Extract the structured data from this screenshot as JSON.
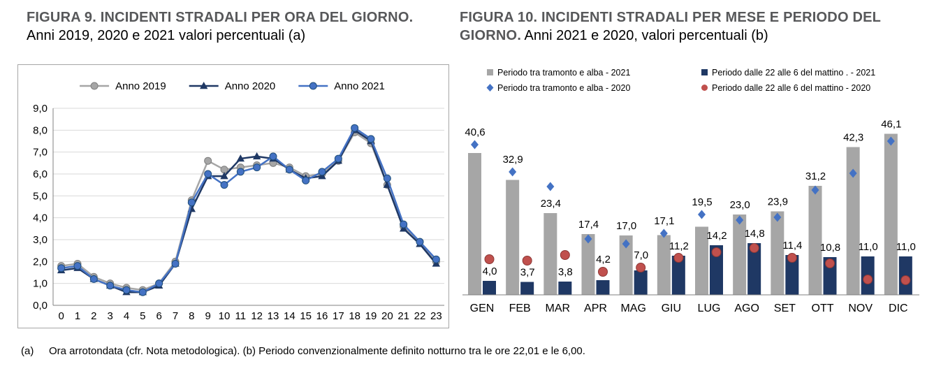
{
  "page": {
    "fig9": {
      "title": "FIGURA 9. INCIDENTI STRADALI PER ORA DEL GIORNO.",
      "subtitle": "Anni 2019, 2020 e 2021 valori percentuali (a)"
    },
    "fig10": {
      "title": "FIGURA 10. INCIDENTI STRADALI PER MESE E PERIODO DEL GIORNO.",
      "subtitle": "Anni 2021 e 2020, valori percentuali (b)"
    },
    "footnote": {
      "label": "(a)",
      "text": "Ora arrotondata (cfr. Nota metodologica). (b) Periodo convenzionalmente definito notturno tra le ore 22,01 e le 6,00."
    }
  },
  "chart_data": [
    {
      "type": "line",
      "title": "FIGURA 9. INCIDENTI STRADALI PER ORA DEL GIORNO. Anni 2019, 2020 e 2021 valori percentuali (a)",
      "xlabel": "",
      "ylabel": "",
      "x": [
        0,
        1,
        2,
        3,
        4,
        5,
        6,
        7,
        8,
        9,
        10,
        11,
        12,
        13,
        14,
        15,
        16,
        17,
        18,
        19,
        20,
        21,
        22,
        23
      ],
      "ylim": [
        0,
        9
      ],
      "ytick_step": 1,
      "ytick_labels": [
        "0,0",
        "1,0",
        "2,0",
        "3,0",
        "4,0",
        "5,0",
        "6,0",
        "7,0",
        "8,0",
        "9,0"
      ],
      "grid": true,
      "legend_position": "top",
      "series": [
        {
          "name": "Anno 2019",
          "color": "#a6a6a6",
          "marker": "circle",
          "marker_stroke": "#7f7f7f",
          "values": [
            1.8,
            1.9,
            1.3,
            1.0,
            0.8,
            0.7,
            1.0,
            2.0,
            4.8,
            6.6,
            6.2,
            6.3,
            6.4,
            6.5,
            6.3,
            5.9,
            6.0,
            6.6,
            7.9,
            7.4,
            5.5,
            3.6,
            2.9,
            2.0
          ]
        },
        {
          "name": "Anno 2020",
          "color": "#1f3864",
          "marker": "triangle",
          "marker_stroke": "#1f3864",
          "values": [
            1.6,
            1.7,
            1.2,
            0.9,
            0.6,
            0.6,
            0.9,
            1.9,
            4.4,
            5.9,
            5.9,
            6.7,
            6.8,
            6.7,
            6.2,
            5.8,
            5.9,
            6.6,
            8.0,
            7.5,
            5.5,
            3.5,
            2.8,
            1.9
          ]
        },
        {
          "name": "Anno 2021",
          "color": "#4472c4",
          "marker": "circle",
          "marker_stroke": "#1f4e79",
          "values": [
            1.7,
            1.8,
            1.2,
            0.9,
            0.7,
            0.6,
            1.0,
            1.9,
            4.7,
            6.0,
            5.5,
            6.1,
            6.3,
            6.8,
            6.2,
            5.7,
            6.1,
            6.7,
            8.1,
            7.6,
            5.8,
            3.7,
            2.9,
            2.1
          ]
        }
      ]
    },
    {
      "type": "bar",
      "title": "FIGURA 10. INCIDENTI STRADALI PER MESE E PERIODO DEL GIORNO. Anni 2021 e 2020, valori percentuali (b)",
      "xlabel": "",
      "ylabel": "",
      "legend_position": "top",
      "categories": [
        "GEN",
        "FEB",
        "MAR",
        "APR",
        "MAG",
        "GIU",
        "LUG",
        "AGO",
        "SET",
        "OTT",
        "NOV",
        "DIC"
      ],
      "bar_series": [
        {
          "name": "Periodo tra tramonto e alba - 2021",
          "color": "#a6a6a6",
          "values": [
            40.6,
            32.9,
            23.4,
            17.4,
            17.0,
            17.1,
            19.5,
            23.0,
            23.9,
            31.2,
            42.3,
            46.1
          ],
          "labels": [
            "40,6",
            "32,9",
            "23,4",
            "17,4",
            "17,0",
            "17,1",
            "19,5",
            "23,0",
            "23,9",
            "31,2",
            "42,3",
            "46,1"
          ]
        },
        {
          "name": "Periodo dalle 22 alle 6 del mattino . - 2021",
          "color": "#1f3864",
          "values": [
            4.0,
            3.7,
            3.8,
            4.2,
            7.0,
            11.2,
            14.2,
            14.8,
            11.4,
            10.8,
            11.0,
            11.0
          ],
          "labels": [
            "4,0",
            "3,7",
            "3,8",
            "4,2",
            "7,0",
            "11,2",
            "14,2",
            "14,8",
            "11,4",
            "10,8",
            "11,0",
            "11,0"
          ]
        }
      ],
      "point_series": [
        {
          "name": "Periodo tra tramonto e alba - 2020",
          "color": "#4472c4",
          "marker": "diamond",
          "values": [
            43.0,
            35.2,
            31.0,
            16.0,
            14.6,
            17.6,
            23.0,
            21.4,
            22.2,
            30.0,
            34.8,
            44.0
          ]
        },
        {
          "name": "Periodo dalle 22 alle 6 del mattino - 2020",
          "color": "#c0504d",
          "marker": "circle",
          "values": [
            10.2,
            9.8,
            11.4,
            6.6,
            7.8,
            10.6,
            12.2,
            13.4,
            10.6,
            9.0,
            4.4,
            4.2
          ]
        }
      ]
    }
  ]
}
